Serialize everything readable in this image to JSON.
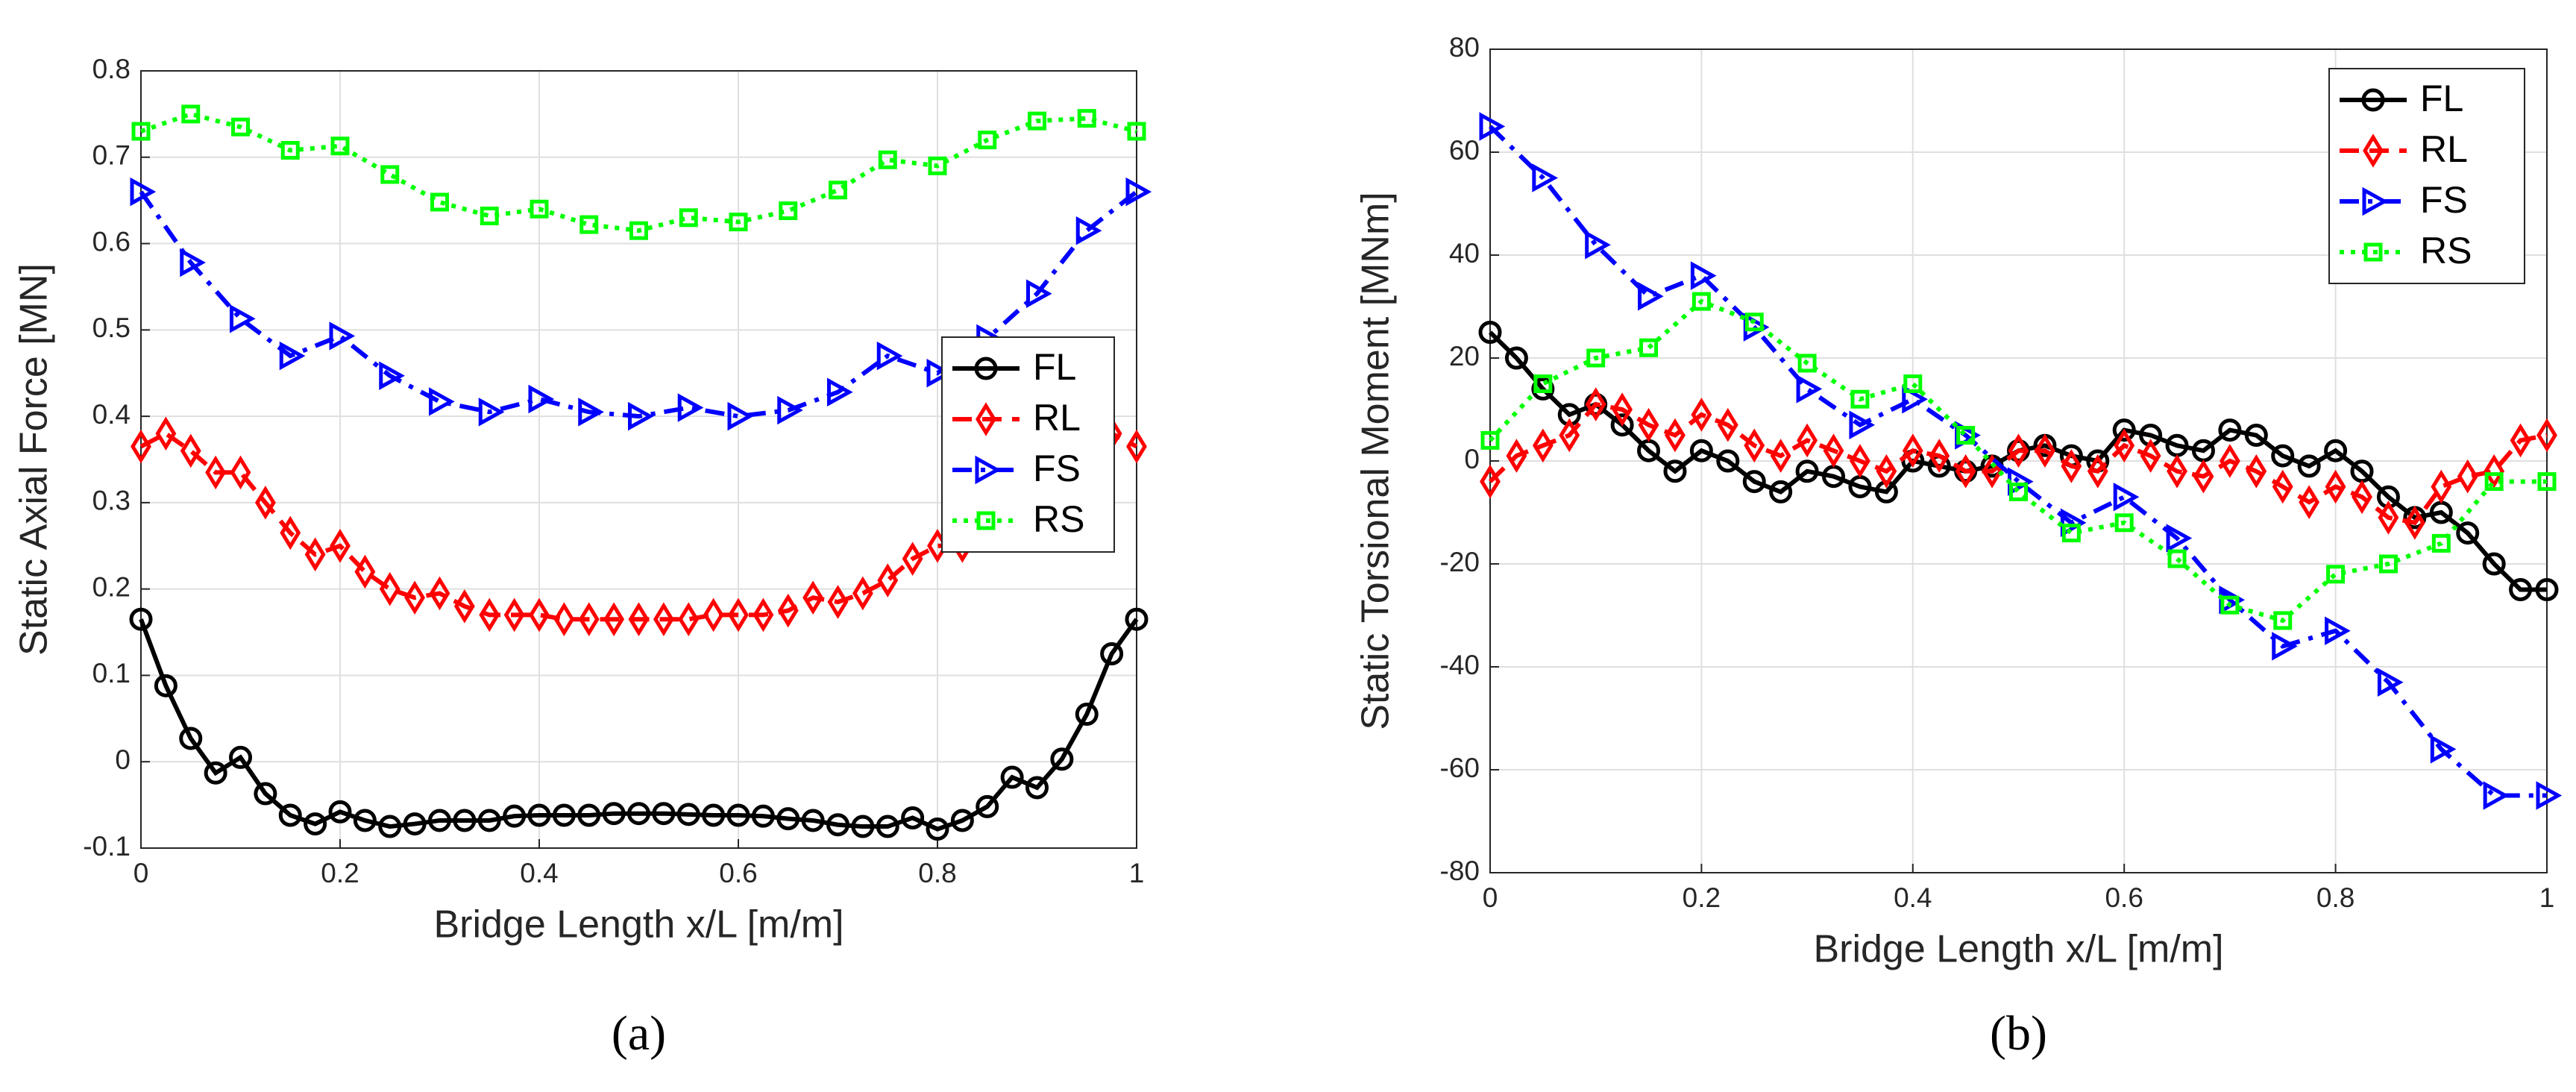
{
  "chart_data": [
    {
      "type": "line",
      "caption": "(a)",
      "xlabel": "Bridge Length x/L [m/m]",
      "ylabel": "Static Axial Force [MN]",
      "xlim": [
        0,
        1
      ],
      "xticks": [
        0,
        0.2,
        0.4,
        0.6,
        0.8,
        1
      ],
      "ylim": [
        -0.1,
        0.8
      ],
      "yticks": [
        -0.1,
        0,
        0.1,
        0.2,
        0.3,
        0.4,
        0.5,
        0.6,
        0.7,
        0.8
      ],
      "grid": true,
      "legend": "east",
      "series": [
        {
          "name": "FL",
          "color": "#000000",
          "marker": "circle",
          "line": "solid",
          "x": [
            0,
            0.025,
            0.05,
            0.075,
            0.1,
            0.125,
            0.15,
            0.175,
            0.2,
            0.225,
            0.25,
            0.275,
            0.3,
            0.325,
            0.35,
            0.375,
            0.4,
            0.425,
            0.45,
            0.475,
            0.5,
            0.525,
            0.55,
            0.575,
            0.6,
            0.625,
            0.65,
            0.675,
            0.7,
            0.725,
            0.75,
            0.775,
            0.8,
            0.825,
            0.85,
            0.875,
            0.9,
            0.925,
            0.95,
            0.975,
            1
          ],
          "values": [
            0.165,
            0.088,
            0.027,
            -0.013,
            0.005,
            -0.037,
            -0.062,
            -0.072,
            -0.058,
            -0.068,
            -0.075,
            -0.072,
            -0.068,
            -0.068,
            -0.068,
            -0.063,
            -0.062,
            -0.062,
            -0.062,
            -0.06,
            -0.06,
            -0.06,
            -0.061,
            -0.062,
            -0.062,
            -0.063,
            -0.066,
            -0.068,
            -0.073,
            -0.075,
            -0.075,
            -0.065,
            -0.078,
            -0.068,
            -0.052,
            -0.018,
            -0.03,
            0.003,
            0.055,
            0.125,
            0.165
          ]
        },
        {
          "name": "RL",
          "color": "#ff0000",
          "marker": "diamond",
          "line": "dashed",
          "x": [
            0,
            0.025,
            0.05,
            0.075,
            0.1,
            0.125,
            0.15,
            0.175,
            0.2,
            0.225,
            0.25,
            0.275,
            0.3,
            0.325,
            0.35,
            0.375,
            0.4,
            0.425,
            0.45,
            0.475,
            0.5,
            0.525,
            0.55,
            0.575,
            0.6,
            0.625,
            0.65,
            0.675,
            0.7,
            0.725,
            0.75,
            0.775,
            0.8,
            0.825,
            0.85,
            0.875,
            0.9,
            0.925,
            0.95,
            0.975,
            1
          ],
          "values": [
            0.365,
            0.38,
            0.36,
            0.335,
            0.335,
            0.3,
            0.265,
            0.24,
            0.25,
            0.22,
            0.2,
            0.19,
            0.195,
            0.18,
            0.17,
            0.17,
            0.17,
            0.165,
            0.165,
            0.165,
            0.165,
            0.165,
            0.165,
            0.17,
            0.17,
            0.17,
            0.175,
            0.19,
            0.185,
            0.195,
            0.21,
            0.235,
            0.25,
            0.25,
            0.265,
            0.3,
            0.335,
            0.335,
            0.36,
            0.38,
            0.365
          ]
        },
        {
          "name": "FS",
          "color": "#0000ff",
          "marker": "triangle-right",
          "line": "dashdot",
          "x": [
            0,
            0.05,
            0.1,
            0.15,
            0.2,
            0.25,
            0.3,
            0.35,
            0.4,
            0.45,
            0.5,
            0.55,
            0.6,
            0.65,
            0.7,
            0.75,
            0.8,
            0.85,
            0.9,
            0.95,
            1
          ],
          "values": [
            0.66,
            0.578,
            0.513,
            0.47,
            0.493,
            0.447,
            0.417,
            0.405,
            0.42,
            0.405,
            0.4,
            0.41,
            0.4,
            0.407,
            0.428,
            0.47,
            0.45,
            0.49,
            0.542,
            0.615,
            0.66
          ]
        },
        {
          "name": "RS",
          "color": "#00ff00",
          "marker": "square",
          "line": "dotted",
          "x": [
            0,
            0.05,
            0.1,
            0.15,
            0.2,
            0.25,
            0.3,
            0.35,
            0.4,
            0.45,
            0.5,
            0.55,
            0.6,
            0.65,
            0.7,
            0.75,
            0.8,
            0.85,
            0.9,
            0.95,
            1
          ],
          "values": [
            0.73,
            0.75,
            0.735,
            0.708,
            0.713,
            0.68,
            0.648,
            0.632,
            0.64,
            0.622,
            0.615,
            0.63,
            0.625,
            0.638,
            0.662,
            0.697,
            0.69,
            0.72,
            0.742,
            0.745,
            0.73
          ]
        }
      ]
    },
    {
      "type": "line",
      "caption": "(b)",
      "xlabel": "Bridge Length x/L [m/m]",
      "ylabel": "Static Torsional Moment [MNm]",
      "xlim": [
        0,
        1
      ],
      "xticks": [
        0,
        0.2,
        0.4,
        0.6,
        0.8,
        1
      ],
      "ylim": [
        -80,
        80
      ],
      "yticks": [
        -80,
        -60,
        -40,
        -20,
        0,
        20,
        40,
        60,
        80
      ],
      "grid": true,
      "legend": "northeast",
      "series": [
        {
          "name": "FL",
          "color": "#000000",
          "marker": "circle",
          "line": "solid",
          "x": [
            0,
            0.025,
            0.05,
            0.075,
            0.1,
            0.125,
            0.15,
            0.175,
            0.2,
            0.225,
            0.25,
            0.275,
            0.3,
            0.325,
            0.35,
            0.375,
            0.4,
            0.425,
            0.45,
            0.475,
            0.5,
            0.525,
            0.55,
            0.575,
            0.6,
            0.625,
            0.65,
            0.675,
            0.7,
            0.725,
            0.75,
            0.775,
            0.8,
            0.825,
            0.85,
            0.875,
            0.9,
            0.925,
            0.95,
            0.975,
            1
          ],
          "values": [
            25,
            20,
            14,
            9,
            11,
            7,
            2,
            -2,
            2,
            0,
            -4,
            -6,
            -2,
            -3,
            -5,
            -6,
            0,
            -1,
            -2,
            -1,
            2,
            3,
            1,
            0,
            6,
            5,
            3,
            2,
            6,
            5,
            1,
            -1,
            2,
            -2,
            -7,
            -11,
            -10,
            -14,
            -20,
            -25,
            -25
          ]
        },
        {
          "name": "RL",
          "color": "#ff0000",
          "marker": "diamond",
          "line": "dashed",
          "x": [
            0,
            0.025,
            0.05,
            0.075,
            0.1,
            0.125,
            0.15,
            0.175,
            0.2,
            0.225,
            0.25,
            0.275,
            0.3,
            0.325,
            0.35,
            0.375,
            0.4,
            0.425,
            0.45,
            0.475,
            0.5,
            0.525,
            0.55,
            0.575,
            0.6,
            0.625,
            0.65,
            0.675,
            0.7,
            0.725,
            0.75,
            0.775,
            0.8,
            0.825,
            0.85,
            0.875,
            0.9,
            0.925,
            0.95,
            0.975,
            1
          ],
          "values": [
            -4,
            1,
            3,
            5,
            11,
            10,
            7,
            5,
            9,
            7,
            3,
            1,
            4,
            2,
            0,
            -2,
            2,
            1,
            -2,
            -2,
            2,
            2,
            -1,
            -2,
            3,
            1,
            -2,
            -3,
            0,
            -2,
            -5,
            -8,
            -5,
            -7,
            -11,
            -12,
            -5,
            -3,
            -2,
            4,
            5
          ]
        },
        {
          "name": "FS",
          "color": "#0000ff",
          "marker": "triangle-right",
          "line": "dashdot",
          "x": [
            0,
            0.05,
            0.1,
            0.15,
            0.2,
            0.25,
            0.3,
            0.35,
            0.4,
            0.45,
            0.5,
            0.55,
            0.6,
            0.65,
            0.7,
            0.75,
            0.8,
            0.85,
            0.9,
            0.95,
            1
          ],
          "values": [
            65,
            55,
            42,
            32,
            36,
            26,
            14,
            7,
            12,
            5,
            -4,
            -12,
            -7,
            -15,
            -27,
            -36,
            -33,
            -43,
            -56,
            -65,
            -65
          ]
        },
        {
          "name": "RS",
          "color": "#00ff00",
          "marker": "square",
          "line": "dotted",
          "x": [
            0,
            0.05,
            0.1,
            0.15,
            0.2,
            0.25,
            0.3,
            0.35,
            0.4,
            0.45,
            0.5,
            0.55,
            0.6,
            0.65,
            0.7,
            0.75,
            0.8,
            0.85,
            0.9,
            0.95,
            1
          ],
          "values": [
            4,
            15,
            20,
            22,
            31,
            27,
            19,
            12,
            15,
            5,
            -6,
            -14,
            -12,
            -19,
            -28,
            -31,
            -22,
            -20,
            -16,
            -4,
            -4
          ]
        }
      ]
    }
  ]
}
